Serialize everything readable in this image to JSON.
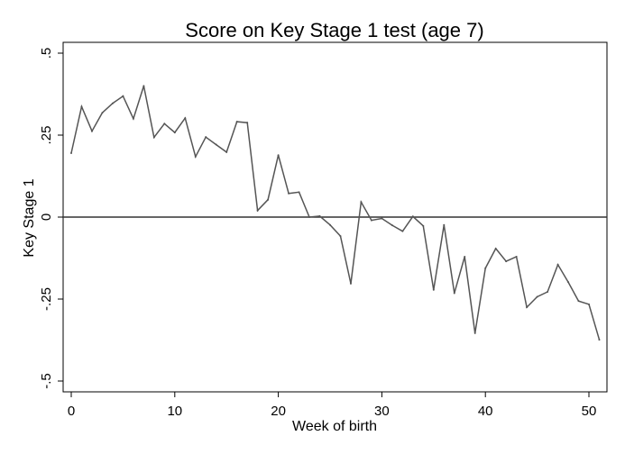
{
  "chart_data": {
    "type": "line",
    "title": "Score on Key Stage 1 test (age 7)",
    "xlabel": "Week of birth",
    "ylabel": "Key Stage 1",
    "xlim": [
      -1,
      52
    ],
    "ylim": [
      -0.5,
      0.5
    ],
    "x_ticks": [
      0,
      10,
      20,
      30,
      40,
      50
    ],
    "x_tick_labels": [
      "0",
      "10",
      "20",
      "30",
      "40",
      "50"
    ],
    "y_ticks": [
      -0.5,
      -0.25,
      0,
      0.25,
      0.5
    ],
    "y_tick_labels": [
      "-.5",
      "-.25",
      "0",
      ".25",
      ".5"
    ],
    "reference_line_y": 0,
    "grid": false,
    "colors": {
      "series": "#555555",
      "reference": "#333333",
      "axis": "#000000"
    },
    "series": [
      {
        "x": [
          0,
          1,
          2,
          3,
          4,
          5,
          6,
          7,
          8,
          9,
          10,
          11,
          12,
          13,
          14,
          15,
          16,
          17,
          18,
          19,
          20,
          21,
          22,
          23,
          24,
          25,
          26,
          27,
          28,
          29,
          30,
          31,
          32,
          33,
          34,
          35,
          36,
          37,
          38,
          39,
          40,
          41,
          42,
          43,
          44,
          45,
          46,
          47,
          48,
          49,
          50,
          51
        ],
        "values": [
          0.195,
          0.337,
          0.262,
          0.318,
          0.347,
          0.369,
          0.3,
          0.4,
          0.243,
          0.285,
          0.258,
          0.302,
          0.184,
          0.244,
          0.221,
          0.198,
          0.291,
          0.288,
          0.02,
          0.053,
          0.189,
          0.072,
          0.076,
          0.0,
          0.003,
          -0.024,
          -0.058,
          -0.203,
          0.046,
          -0.01,
          -0.004,
          -0.025,
          -0.043,
          0.002,
          -0.027,
          -0.222,
          -0.024,
          -0.232,
          -0.121,
          -0.354,
          -0.156,
          -0.096,
          -0.135,
          -0.121,
          -0.275,
          -0.243,
          -0.228,
          -0.145,
          -0.198,
          -0.256,
          -0.266,
          -0.374
        ]
      }
    ]
  }
}
